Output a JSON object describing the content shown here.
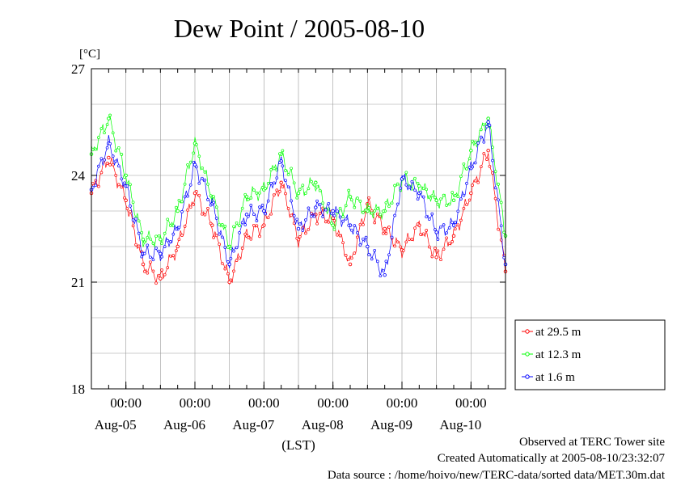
{
  "chart_data": {
    "type": "line",
    "title": "Dew Point / 2005-08-10",
    "ylabel": "[°C]",
    "xlabel": "(LST)",
    "ylim": [
      18,
      27
    ],
    "yticks": [
      "18",
      "21",
      "24",
      "27"
    ],
    "xlim": [
      "2005-08-04 12:00",
      "2005-08-10 12:00"
    ],
    "xtick_time_label": "00:00",
    "xticks": [
      {
        "time": "00:00",
        "date": "Aug-05"
      },
      {
        "time": "00:00",
        "date": "Aug-06"
      },
      {
        "time": "00:00",
        "date": "Aug-07"
      },
      {
        "time": "00:00",
        "date": "Aug-08"
      },
      {
        "time": "00:00",
        "date": "Aug-09"
      },
      {
        "time": "00:00",
        "date": "Aug-10"
      }
    ],
    "grid": true,
    "legend_position": "right",
    "colors": {
      "s0": "#ff0000",
      "s1": "#00ff00",
      "s2": "#0000ff",
      "grid": "#999999"
    },
    "x_hours": [
      0,
      6,
      12,
      18,
      24,
      30,
      36,
      42,
      48,
      54,
      60,
      66,
      72,
      78,
      84,
      90,
      96,
      102,
      108,
      114,
      120,
      126,
      132,
      138,
      144
    ],
    "series": [
      {
        "name": "at 29.5 m",
        "values": [
          23.5,
          24.5,
          23.3,
          21.5,
          21.1,
          22.0,
          23.5,
          22.6,
          21.0,
          22.3,
          22.6,
          23.8,
          22.2,
          22.9,
          22.8,
          21.5,
          23.2,
          22.5,
          21.9,
          22.6,
          21.7,
          22.3,
          23.5,
          24.7,
          21.3
        ]
      },
      {
        "name": "at 12.3 m",
        "values": [
          24.6,
          25.6,
          24.0,
          22.2,
          22.2,
          23.0,
          24.9,
          23.4,
          22.0,
          23.4,
          23.6,
          24.6,
          23.5,
          23.8,
          22.6,
          23.4,
          23.0,
          23.0,
          23.9,
          23.7,
          23.3,
          23.3,
          24.7,
          25.6,
          22.3
        ]
      },
      {
        "name": "at 1.6 m",
        "values": [
          23.6,
          24.9,
          23.7,
          21.8,
          21.8,
          22.5,
          24.3,
          23.2,
          21.5,
          22.9,
          23.0,
          24.4,
          22.5,
          23.1,
          23.0,
          22.6,
          22.0,
          21.2,
          23.9,
          23.5,
          22.4,
          22.6,
          24.2,
          25.5,
          21.5
        ]
      }
    ]
  },
  "footer": {
    "observed": "Observed at TERC Tower site",
    "created": "Created Automatically at 2005-08-10/23:32:07",
    "source": "Data source : /home/hoivo/new/TERC-data/sorted  data/MET.30m.dat"
  }
}
